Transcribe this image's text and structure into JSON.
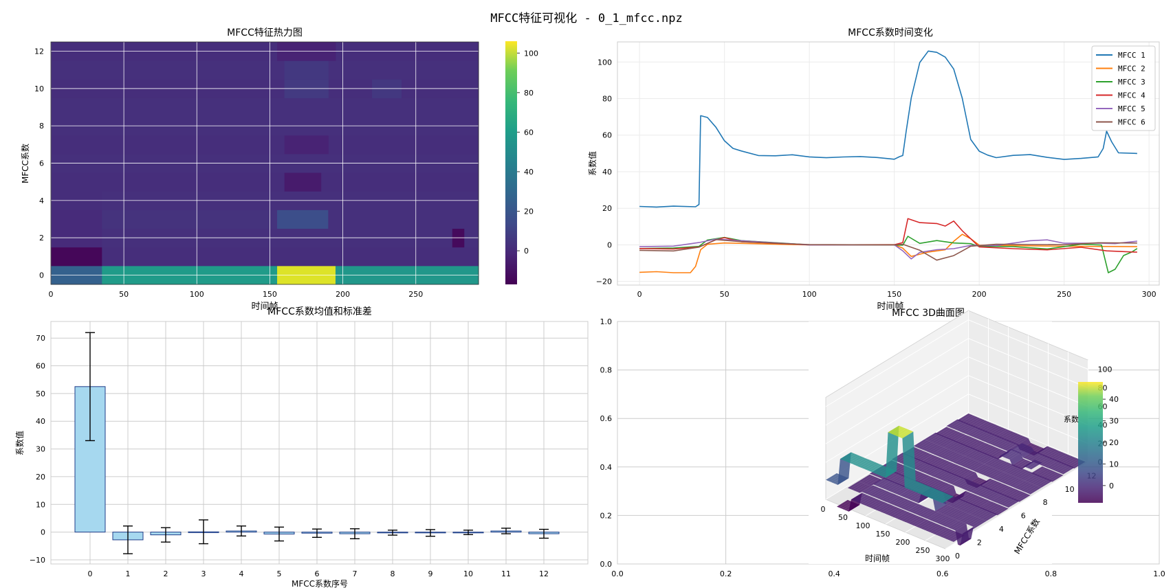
{
  "figure": {
    "suptitle": "MFCC特征可视化 - 0_1_mfcc.npz"
  },
  "colors": {
    "viridis_low": "#440154",
    "viridis_mid": "#21918c",
    "viridis_high": "#fde725",
    "bar_fill": "#a6d8ef",
    "bar_edge": "#1f3c88",
    "grid": "#cccccc"
  },
  "chart_data": [
    {
      "type": "heatmap",
      "title": "MFCC特征热力图",
      "xlabel": "时间帧",
      "ylabel": "MFCC系数",
      "xlim": [
        0,
        293
      ],
      "ylim": [
        -0.5,
        12.5
      ],
      "xticks": [
        "0",
        "50",
        "100",
        "150",
        "200",
        "250"
      ],
      "yticks": [
        "0",
        "2",
        "4",
        "6",
        "8",
        "10",
        "12"
      ],
      "colorbar_ticks": [
        "0",
        "20",
        "40",
        "60",
        "80",
        "100"
      ],
      "colorbar_range": [
        -17,
        106
      ],
      "colormap": "viridis",
      "rows": [
        {
          "mfcc": 0,
          "segments": [
            [
              0,
              35,
              21
            ],
            [
              35,
              155,
              50
            ],
            [
              155,
              195,
              100
            ],
            [
              195,
              293,
              48
            ]
          ]
        },
        {
          "mfcc": 1,
          "segments": [
            [
              0,
              35,
              -15
            ],
            [
              35,
              293,
              -1
            ]
          ]
        },
        {
          "mfcc": 2,
          "segments": [
            [
              0,
              35,
              -2
            ],
            [
              35,
              293,
              0
            ],
            [
              275,
              283,
              -14
            ]
          ]
        },
        {
          "mfcc": 3,
          "segments": [
            [
              0,
              35,
              -2
            ],
            [
              35,
              155,
              1
            ],
            [
              155,
              190,
              12
            ],
            [
              190,
              293,
              0
            ]
          ]
        },
        {
          "mfcc": 4,
          "segments": [
            [
              0,
              35,
              -1
            ],
            [
              35,
              293,
              0
            ]
          ]
        },
        {
          "mfcc": 5,
          "segments": [
            [
              0,
              293,
              -1
            ],
            [
              160,
              185,
              -8
            ]
          ]
        },
        {
          "mfcc": 6,
          "segments": [
            [
              0,
              293,
              0
            ]
          ]
        },
        {
          "mfcc": 7,
          "segments": [
            [
              0,
              293,
              -1
            ],
            [
              160,
              190,
              -5
            ]
          ]
        },
        {
          "mfcc": 8,
          "segments": [
            [
              0,
              293,
              0
            ]
          ]
        },
        {
          "mfcc": 9,
          "segments": [
            [
              0,
              293,
              0
            ]
          ]
        },
        {
          "mfcc": 10,
          "segments": [
            [
              0,
              293,
              -1
            ],
            [
              160,
              190,
              4
            ],
            [
              220,
              240,
              3
            ]
          ]
        },
        {
          "mfcc": 11,
          "segments": [
            [
              0,
              293,
              0
            ],
            [
              160,
              190,
              3
            ]
          ]
        },
        {
          "mfcc": 12,
          "segments": [
            [
              0,
              293,
              -1
            ],
            [
              155,
              195,
              -5
            ]
          ]
        }
      ]
    },
    {
      "type": "line",
      "title": "MFCC系数时间变化",
      "xlabel": "时间帧",
      "ylabel": "系数值",
      "xlim": [
        -13,
        306
      ],
      "ylim": [
        -22,
        111
      ],
      "xticks": [
        "0",
        "50",
        "100",
        "150",
        "200",
        "250",
        "300"
      ],
      "yticks": [
        "−20",
        "0",
        "20",
        "40",
        "60",
        "80",
        "100"
      ],
      "legend_position": "top-right",
      "series": [
        {
          "name": "MFCC 1",
          "color": "#1f77b4",
          "points": [
            [
              0,
              21
            ],
            [
              10,
              21
            ],
            [
              20,
              21
            ],
            [
              33,
              21
            ],
            [
              35,
              22
            ],
            [
              36,
              71
            ],
            [
              40,
              70
            ],
            [
              45,
              64
            ],
            [
              50,
              57
            ],
            [
              55,
              53
            ],
            [
              60,
              51
            ],
            [
              70,
              49
            ],
            [
              80,
              49
            ],
            [
              90,
              49
            ],
            [
              100,
              48
            ],
            [
              110,
              48
            ],
            [
              120,
              48
            ],
            [
              130,
              48
            ],
            [
              140,
              48
            ],
            [
              150,
              47
            ],
            [
              153,
              48
            ],
            [
              155,
              49
            ],
            [
              157,
              62
            ],
            [
              160,
              80
            ],
            [
              165,
              100
            ],
            [
              170,
              106
            ],
            [
              175,
              105
            ],
            [
              180,
              103
            ],
            [
              185,
              96
            ],
            [
              190,
              80
            ],
            [
              195,
              58
            ],
            [
              200,
              51
            ],
            [
              205,
              49
            ],
            [
              210,
              48
            ],
            [
              220,
              49
            ],
            [
              230,
              49
            ],
            [
              240,
              48
            ],
            [
              250,
              47
            ],
            [
              260,
              47
            ],
            [
              270,
              48
            ],
            [
              273,
              53
            ],
            [
              275,
              62
            ],
            [
              278,
              56
            ],
            [
              282,
              50
            ],
            [
              293,
              50
            ]
          ]
        },
        {
          "name": "MFCC 2",
          "color": "#ff7f0e",
          "points": [
            [
              0,
              -15
            ],
            [
              10,
              -15
            ],
            [
              20,
              -15
            ],
            [
              30,
              -15
            ],
            [
              33,
              -12
            ],
            [
              36,
              -3
            ],
            [
              40,
              0
            ],
            [
              50,
              1
            ],
            [
              100,
              0
            ],
            [
              150,
              0
            ],
            [
              155,
              -2
            ],
            [
              160,
              -6
            ],
            [
              170,
              -4
            ],
            [
              180,
              -3
            ],
            [
              185,
              2
            ],
            [
              190,
              6
            ],
            [
              195,
              3
            ],
            [
              200,
              0
            ],
            [
              250,
              -1
            ],
            [
              293,
              -1
            ]
          ]
        },
        {
          "name": "MFCC 3",
          "color": "#2ca02c",
          "points": [
            [
              0,
              -2
            ],
            [
              20,
              -2
            ],
            [
              35,
              -1
            ],
            [
              40,
              3
            ],
            [
              50,
              4
            ],
            [
              60,
              2
            ],
            [
              100,
              0
            ],
            [
              150,
              0
            ],
            [
              155,
              0
            ],
            [
              158,
              5
            ],
            [
              165,
              1
            ],
            [
              175,
              2
            ],
            [
              185,
              1
            ],
            [
              195,
              1
            ],
            [
              200,
              -1
            ],
            [
              220,
              -1
            ],
            [
              240,
              -2
            ],
            [
              260,
              0
            ],
            [
              272,
              0
            ],
            [
              276,
              -15
            ],
            [
              280,
              -13
            ],
            [
              285,
              -6
            ],
            [
              290,
              -4
            ],
            [
              293,
              -2
            ]
          ]
        },
        {
          "name": "MFCC 4",
          "color": "#d62728",
          "points": [
            [
              0,
              -2
            ],
            [
              20,
              -2
            ],
            [
              35,
              -1
            ],
            [
              45,
              3
            ],
            [
              50,
              4
            ],
            [
              60,
              2
            ],
            [
              100,
              0
            ],
            [
              150,
              0
            ],
            [
              155,
              1
            ],
            [
              158,
              14
            ],
            [
              165,
              12
            ],
            [
              175,
              12
            ],
            [
              180,
              10
            ],
            [
              185,
              13
            ],
            [
              190,
              8
            ],
            [
              195,
              3
            ],
            [
              200,
              -1
            ],
            [
              220,
              -2
            ],
            [
              240,
              -3
            ],
            [
              260,
              -1
            ],
            [
              275,
              -3
            ],
            [
              293,
              -4
            ]
          ]
        },
        {
          "name": "MFCC 5",
          "color": "#9467bd",
          "points": [
            [
              0,
              -1
            ],
            [
              20,
              -1
            ],
            [
              35,
              1
            ],
            [
              45,
              3
            ],
            [
              60,
              2
            ],
            [
              100,
              0
            ],
            [
              150,
              0
            ],
            [
              155,
              -3
            ],
            [
              160,
              -8
            ],
            [
              165,
              -4
            ],
            [
              175,
              -3
            ],
            [
              185,
              -2
            ],
            [
              195,
              0
            ],
            [
              210,
              0
            ],
            [
              230,
              2
            ],
            [
              240,
              3
            ],
            [
              250,
              1
            ],
            [
              270,
              1
            ],
            [
              280,
              1
            ],
            [
              293,
              2
            ]
          ]
        },
        {
          "name": "MFCC 6",
          "color": "#8c564b",
          "points": [
            [
              0,
              -3
            ],
            [
              20,
              -3
            ],
            [
              35,
              -1
            ],
            [
              45,
              3
            ],
            [
              60,
              2
            ],
            [
              100,
              0
            ],
            [
              150,
              0
            ],
            [
              155,
              0
            ],
            [
              165,
              -3
            ],
            [
              175,
              -8
            ],
            [
              185,
              -6
            ],
            [
              190,
              -3
            ],
            [
              195,
              -1
            ],
            [
              210,
              0
            ],
            [
              250,
              0
            ],
            [
              270,
              1
            ],
            [
              293,
              1
            ]
          ]
        }
      ]
    },
    {
      "type": "bar",
      "title": "MFCC系数均值和标准差",
      "xlabel": "MFCC系数序号",
      "ylabel": "系数值",
      "ylim": [
        -11.5,
        76
      ],
      "categories": [
        "0",
        "1",
        "2",
        "3",
        "4",
        "5",
        "6",
        "7",
        "8",
        "9",
        "10",
        "11",
        "12"
      ],
      "yticks": [
        "−10",
        "0",
        "10",
        "20",
        "30",
        "40",
        "50",
        "60",
        "70"
      ],
      "values": [
        52.5,
        -2.8,
        -1.0,
        0.1,
        0.4,
        -0.7,
        -0.4,
        -0.6,
        -0.2,
        -0.3,
        -0.1,
        0.4,
        -0.6
      ],
      "errors": [
        19.5,
        5.0,
        2.6,
        4.3,
        1.8,
        2.5,
        1.5,
        1.8,
        0.9,
        1.2,
        0.8,
        1.0,
        1.6
      ]
    },
    {
      "type": "surface",
      "title": "MFCC 3D曲面图",
      "background_axis_ticks_x": [
        "0.0",
        "0.2",
        "0.4",
        "0.6",
        "0.8",
        "1.0"
      ],
      "background_axis_ticks_y": [
        "0.0",
        "0.2",
        "0.4",
        "0.6",
        "0.8",
        "1.0"
      ],
      "xlabel": "时间帧",
      "ylabel": "MFCC系数",
      "zlabel": "系数",
      "xticks": [
        "0",
        "50",
        "100",
        "150",
        "200",
        "250",
        "300"
      ],
      "yticks": [
        "0",
        "2",
        "4",
        "6",
        "8",
        "10",
        "12"
      ],
      "zticks": [
        "0",
        "20",
        "40",
        "60",
        "80",
        "100"
      ],
      "colorbar_ticks": [
        "0",
        "10",
        "20",
        "30",
        "40"
      ]
    }
  ]
}
